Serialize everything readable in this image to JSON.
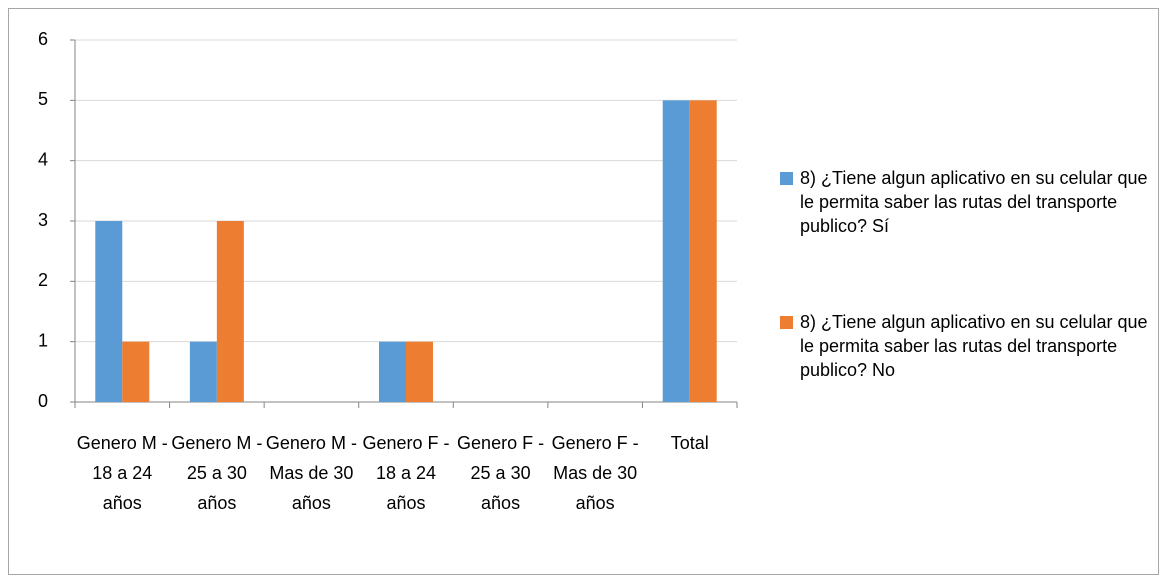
{
  "chart_data": {
    "type": "bar",
    "categories": [
      "Genero M - 18 a 24 años",
      "Genero M - 25 a 30 años",
      "Genero M - Mas de 30 años",
      "Genero F - 18 a 24 años",
      "Genero F - 25 a 30 años",
      "Genero F - Mas de 30 años",
      "Total"
    ],
    "series": [
      {
        "name": "8) ¿Tiene algun aplicativo en su celular que le permita saber las rutas del transporte publico? Sí",
        "color": "#5b9bd5",
        "values": [
          3,
          1,
          0,
          1,
          0,
          0,
          5
        ]
      },
      {
        "name": "8) ¿Tiene algun aplicativo en su celular que le permita saber las rutas del transporte publico? No",
        "color": "#ed7d31",
        "values": [
          1,
          3,
          0,
          1,
          0,
          0,
          5
        ]
      }
    ],
    "ylim": [
      0,
      6
    ],
    "yticks": [
      0,
      1,
      2,
      3,
      4,
      5,
      6
    ],
    "grid": true,
    "legend": "right"
  }
}
